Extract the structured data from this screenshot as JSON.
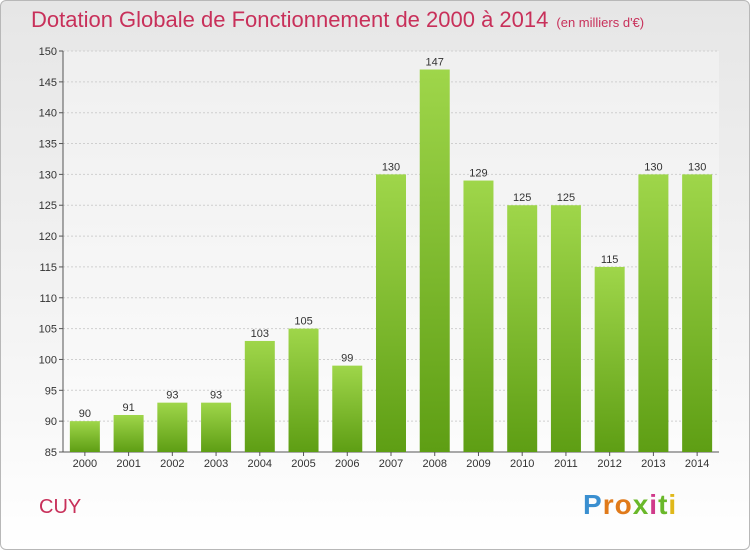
{
  "title": "Dotation Globale de Fonctionnement de 2000 à 2014",
  "subtitle": "(en milliers d'€)",
  "commune": "CUY",
  "logo": "Proxiti",
  "chart_data": {
    "type": "bar",
    "categories": [
      "2000",
      "2001",
      "2002",
      "2003",
      "2004",
      "2005",
      "2006",
      "2007",
      "2008",
      "2009",
      "2010",
      "2011",
      "2012",
      "2013",
      "2014"
    ],
    "values": [
      90,
      91,
      93,
      93,
      103,
      105,
      99,
      130,
      147,
      129,
      125,
      125,
      115,
      130,
      130
    ],
    "title": "Dotation Globale de Fonctionnement de 2000 à 2014",
    "subtitle": "(en milliers d'€)",
    "xlabel": "",
    "ylabel": "",
    "ylim": [
      85,
      150
    ],
    "yticks": [
      85,
      90,
      95,
      100,
      105,
      110,
      115,
      120,
      125,
      130,
      135,
      140,
      145,
      150
    ],
    "grid": true,
    "bar_color": "#7dbb2a",
    "title_color": "#c8305a"
  }
}
